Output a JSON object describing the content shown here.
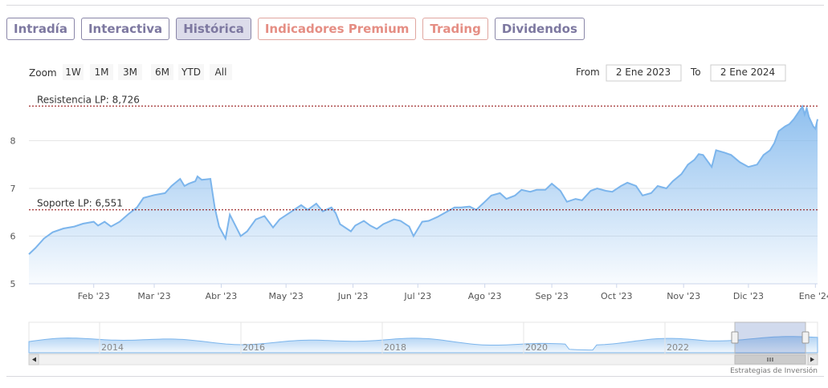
{
  "tabs": [
    {
      "label": "Intradía",
      "active": false,
      "premium": false
    },
    {
      "label": "Interactiva",
      "active": false,
      "premium": false
    },
    {
      "label": "Histórica",
      "active": true,
      "premium": false
    },
    {
      "label": "Indicadores Premium",
      "active": false,
      "premium": true
    },
    {
      "label": "Trading",
      "active": false,
      "premium": true
    },
    {
      "label": "Dividendos",
      "active": false,
      "premium": false
    }
  ],
  "range_selector": {
    "zoom_label": "Zoom",
    "buttons": [
      "1W",
      "1M",
      "3M",
      "6M",
      "YTD",
      "All"
    ],
    "from_label": "From",
    "from_value": "2 Ene 2023",
    "to_label": "To",
    "to_value": "2 Ene 2024"
  },
  "credit": "Estrategias de Inversión",
  "colors": {
    "series": "#7cb5ec",
    "tab": "#7d78a0",
    "premium_tab": "#e58e84",
    "line": "#8b0000"
  },
  "chart_data": {
    "type": "area",
    "x_labels": [
      "Feb '23",
      "Mar '23",
      "Abr '23",
      "May '23",
      "Jun '23",
      "Jul '23",
      "Ago '23",
      "Sep '23",
      "Oct '23",
      "Nov '23",
      "Dic '23",
      "Ene '24"
    ],
    "x_start": "2023-01-02",
    "x_end": "2024-01-02",
    "ylim": [
      5,
      9
    ],
    "y_ticks": [
      5,
      6,
      7,
      8
    ],
    "reference_lines": [
      {
        "label": "Resistencia LP: 8,726",
        "value": 8.726
      },
      {
        "label": "Soporte LP: 6,551",
        "value": 6.551
      }
    ],
    "series": [
      {
        "points": [
          [
            "2023-01-02",
            5.62
          ],
          [
            "2023-01-05",
            5.75
          ],
          [
            "2023-01-09",
            5.95
          ],
          [
            "2023-01-13",
            6.08
          ],
          [
            "2023-01-18",
            6.16
          ],
          [
            "2023-01-23",
            6.2
          ],
          [
            "2023-01-27",
            6.26
          ],
          [
            "2023-02-01",
            6.3
          ],
          [
            "2023-02-03",
            6.22
          ],
          [
            "2023-02-06",
            6.3
          ],
          [
            "2023-02-09",
            6.2
          ],
          [
            "2023-02-13",
            6.3
          ],
          [
            "2023-02-17",
            6.46
          ],
          [
            "2023-02-21",
            6.6
          ],
          [
            "2023-02-24",
            6.8
          ],
          [
            "2023-03-01",
            6.86
          ],
          [
            "2023-03-06",
            6.9
          ],
          [
            "2023-03-09",
            7.05
          ],
          [
            "2023-03-13",
            7.2
          ],
          [
            "2023-03-15",
            7.05
          ],
          [
            "2023-03-17",
            7.1
          ],
          [
            "2023-03-20",
            7.15
          ],
          [
            "2023-03-21",
            7.25
          ],
          [
            "2023-03-23",
            7.18
          ],
          [
            "2023-03-27",
            7.2
          ],
          [
            "2023-03-29",
            6.6
          ],
          [
            "2023-03-31",
            6.2
          ],
          [
            "2023-04-03",
            5.95
          ],
          [
            "2023-04-05",
            6.45
          ],
          [
            "2023-04-10",
            6.0
          ],
          [
            "2023-04-13",
            6.1
          ],
          [
            "2023-04-17",
            6.35
          ],
          [
            "2023-04-21",
            6.42
          ],
          [
            "2023-04-25",
            6.18
          ],
          [
            "2023-04-28",
            6.35
          ],
          [
            "2023-05-03",
            6.5
          ],
          [
            "2023-05-08",
            6.65
          ],
          [
            "2023-05-11",
            6.55
          ],
          [
            "2023-05-15",
            6.68
          ],
          [
            "2023-05-18",
            6.52
          ],
          [
            "2023-05-22",
            6.6
          ],
          [
            "2023-05-24",
            6.48
          ],
          [
            "2023-05-26",
            6.25
          ],
          [
            "2023-05-31",
            6.1
          ],
          [
            "2023-06-02",
            6.22
          ],
          [
            "2023-06-06",
            6.32
          ],
          [
            "2023-06-09",
            6.22
          ],
          [
            "2023-06-12",
            6.15
          ],
          [
            "2023-06-15",
            6.25
          ],
          [
            "2023-06-20",
            6.35
          ],
          [
            "2023-06-23",
            6.32
          ],
          [
            "2023-06-27",
            6.2
          ],
          [
            "2023-06-29",
            6.0
          ],
          [
            "2023-07-03",
            6.3
          ],
          [
            "2023-07-06",
            6.32
          ],
          [
            "2023-07-10",
            6.4
          ],
          [
            "2023-07-14",
            6.5
          ],
          [
            "2023-07-18",
            6.6
          ],
          [
            "2023-07-21",
            6.6
          ],
          [
            "2023-07-25",
            6.62
          ],
          [
            "2023-07-28",
            6.55
          ],
          [
            "2023-08-01",
            6.72
          ],
          [
            "2023-08-04",
            6.85
          ],
          [
            "2023-08-08",
            6.9
          ],
          [
            "2023-08-11",
            6.78
          ],
          [
            "2023-08-15",
            6.85
          ],
          [
            "2023-08-18",
            6.97
          ],
          [
            "2023-08-22",
            6.93
          ],
          [
            "2023-08-25",
            6.97
          ],
          [
            "2023-08-29",
            6.97
          ],
          [
            "2023-09-01",
            7.1
          ],
          [
            "2023-09-05",
            6.95
          ],
          [
            "2023-09-08",
            6.72
          ],
          [
            "2023-09-12",
            6.78
          ],
          [
            "2023-09-15",
            6.75
          ],
          [
            "2023-09-19",
            6.95
          ],
          [
            "2023-09-22",
            7.0
          ],
          [
            "2023-09-26",
            6.95
          ],
          [
            "2023-09-29",
            6.93
          ],
          [
            "2023-10-03",
            7.05
          ],
          [
            "2023-10-06",
            7.12
          ],
          [
            "2023-10-10",
            7.05
          ],
          [
            "2023-10-13",
            6.85
          ],
          [
            "2023-10-17",
            6.9
          ],
          [
            "2023-10-20",
            7.05
          ],
          [
            "2023-10-24",
            7.0
          ],
          [
            "2023-10-27",
            7.15
          ],
          [
            "2023-10-31",
            7.3
          ],
          [
            "2023-11-03",
            7.5
          ],
          [
            "2023-11-06",
            7.6
          ],
          [
            "2023-11-08",
            7.72
          ],
          [
            "2023-11-10",
            7.7
          ],
          [
            "2023-11-14",
            7.45
          ],
          [
            "2023-11-16",
            7.8
          ],
          [
            "2023-11-20",
            7.75
          ],
          [
            "2023-11-23",
            7.7
          ],
          [
            "2023-11-27",
            7.55
          ],
          [
            "2023-11-29",
            7.5
          ],
          [
            "2023-12-01",
            7.45
          ],
          [
            "2023-12-05",
            7.5
          ],
          [
            "2023-12-08",
            7.7
          ],
          [
            "2023-12-11",
            7.8
          ],
          [
            "2023-12-13",
            7.95
          ],
          [
            "2023-12-15",
            8.2
          ],
          [
            "2023-12-18",
            8.3
          ],
          [
            "2023-12-20",
            8.35
          ],
          [
            "2023-12-22",
            8.45
          ],
          [
            "2023-12-26",
            8.72
          ],
          [
            "2023-12-27",
            8.55
          ],
          [
            "2023-12-28",
            8.68
          ],
          [
            "2023-12-29",
            8.5
          ],
          [
            "2023-12-30",
            8.4
          ],
          [
            "2023-12-31",
            8.3
          ],
          [
            "2024-01-01",
            8.25
          ],
          [
            "2024-01-02",
            8.45
          ]
        ]
      }
    ],
    "navigator": {
      "x_labels": [
        "2014",
        "2016",
        "2018",
        "2020",
        "2022"
      ]
    }
  }
}
